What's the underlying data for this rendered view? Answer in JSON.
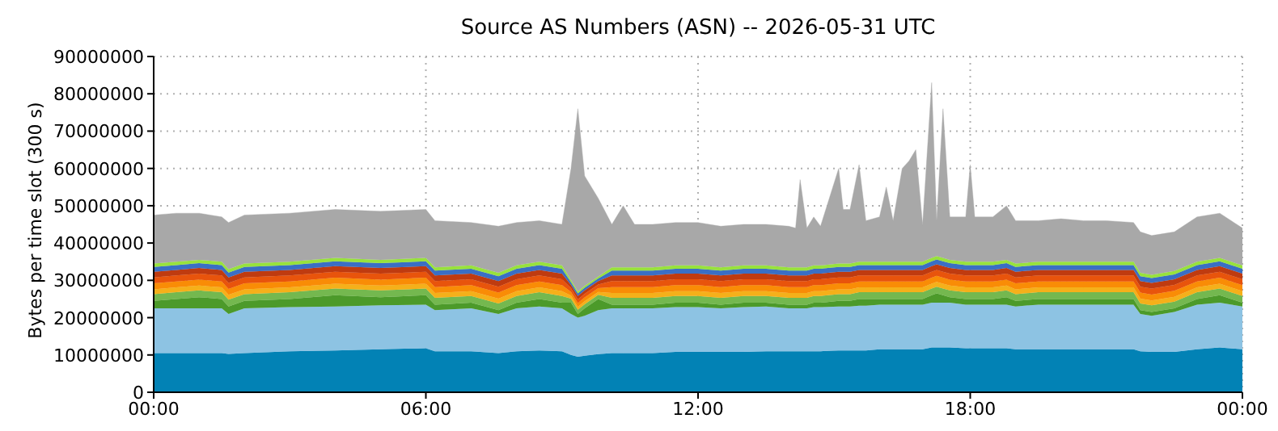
{
  "chart_data": {
    "type": "area",
    "stacked": true,
    "title": "Source AS Numbers (ASN) -- 2026-05-31 UTC",
    "ylabel": "Bytes per time slot (300 s)",
    "grid": true,
    "x": [
      0,
      0.5,
      1,
      1.5,
      1.65,
      2,
      3,
      4,
      5,
      6,
      6.2,
      7,
      7.6,
      8,
      8.5,
      9,
      9.2,
      9.35,
      9.5,
      9.8,
      10.1,
      10.35,
      10.6,
      11,
      11.5,
      12,
      12.5,
      13,
      13.5,
      14,
      14.15,
      14.25,
      14.4,
      14.55,
      14.7,
      15.1,
      15.2,
      15.35,
      15.55,
      15.7,
      16,
      16.15,
      16.3,
      16.5,
      16.65,
      16.8,
      16.95,
      17.15,
      17.26,
      17.4,
      17.55,
      17.9,
      18,
      18.1,
      18.5,
      18.8,
      19,
      19.5,
      20,
      20.5,
      21,
      21.6,
      21.75,
      22,
      22.5,
      23,
      23.5,
      24
    ],
    "xlim": [
      0,
      24
    ],
    "xticks": [
      {
        "value": 0,
        "label": "00:00"
      },
      {
        "value": 6,
        "label": "06:00"
      },
      {
        "value": 12,
        "label": "12:00"
      },
      {
        "value": 18,
        "label": "18:00"
      },
      {
        "value": 24,
        "label": "00:00"
      }
    ],
    "ylim": [
      0,
      90000000
    ],
    "yticks": [
      0,
      10000000,
      20000000,
      30000000,
      40000000,
      50000000,
      60000000,
      70000000,
      80000000,
      90000000
    ],
    "series": [
      {
        "color": "#0282b5",
        "values": [
          10500000,
          10500000,
          10500000,
          10500000,
          10300000,
          10500000,
          11000000,
          11200000,
          11500000,
          11800000,
          11000000,
          11000000,
          10500000,
          11000000,
          11200000,
          11000000,
          10000000,
          9500000,
          9800000,
          10200000,
          10500000,
          10500000,
          10500000,
          10500000,
          10800000,
          10800000,
          10800000,
          10800000,
          11000000,
          11000000,
          11000000,
          11000000,
          11000000,
          11000000,
          11000000,
          11200000,
          11200000,
          11200000,
          11200000,
          11200000,
          11500000,
          11500000,
          11500000,
          11500000,
          11500000,
          11500000,
          11500000,
          12000000,
          12000000,
          12000000,
          12000000,
          11800000,
          11800000,
          11800000,
          11800000,
          11800000,
          11500000,
          11500000,
          11500000,
          11500000,
          11500000,
          11500000,
          11000000,
          10800000,
          10800000,
          11500000,
          12000000,
          11500000
        ]
      },
      {
        "color": "#8dc3e3",
        "values": [
          12000000,
          12000000,
          12000000,
          12000000,
          10700000,
          12000000,
          11800000,
          11800000,
          11800000,
          11700000,
          11000000,
          11500000,
          10500000,
          11500000,
          11800000,
          11500000,
          11000000,
          10500000,
          10700000,
          11800000,
          12000000,
          12000000,
          12000000,
          12000000,
          12000000,
          12000000,
          11700000,
          12000000,
          12000000,
          11500000,
          11500000,
          11500000,
          11500000,
          11800000,
          11800000,
          11800000,
          11800000,
          11800000,
          12000000,
          12000000,
          12000000,
          12000000,
          12000000,
          12000000,
          12000000,
          12000000,
          12000000,
          12000000,
          12000000,
          12000000,
          12000000,
          11700000,
          11700000,
          11700000,
          11700000,
          11700000,
          11500000,
          12000000,
          12000000,
          12000000,
          12000000,
          12000000,
          10000000,
          9700000,
          10700000,
          12000000,
          12000000,
          11500000
        ]
      },
      {
        "color": "#4c9a2a",
        "values": [
          2000000,
          2500000,
          3000000,
          2500000,
          2000000,
          2000000,
          2200000,
          3000000,
          2200000,
          2500000,
          1500000,
          1500000,
          1000000,
          1500000,
          2000000,
          1500000,
          3000000,
          1000000,
          2000000,
          3000000,
          1000000,
          1000000,
          1000000,
          1000000,
          1200000,
          1200000,
          1000000,
          1200000,
          1000000,
          1000000,
          1000000,
          1000000,
          1000000,
          1200000,
          1200000,
          1500000,
          1500000,
          1500000,
          1800000,
          1800000,
          1500000,
          1500000,
          1500000,
          1500000,
          1500000,
          1500000,
          1500000,
          2000000,
          2500000,
          2000000,
          1500000,
          1500000,
          1500000,
          1500000,
          1500000,
          2000000,
          1500000,
          1500000,
          1500000,
          1500000,
          1500000,
          1500000,
          1000000,
          1000000,
          1000000,
          1500000,
          2000000,
          1000000
        ]
      },
      {
        "color": "#74b84f",
        "values": [
          1800000,
          1800000,
          1800000,
          1800000,
          1800000,
          1800000,
          1800000,
          1800000,
          1800000,
          1800000,
          1800000,
          1800000,
          1800000,
          1800000,
          1800000,
          1800000,
          1100000,
          1100000,
          1100000,
          1100000,
          1800000,
          1800000,
          1800000,
          1800000,
          1800000,
          1800000,
          1800000,
          1800000,
          1800000,
          1800000,
          1800000,
          1800000,
          1800000,
          1800000,
          1800000,
          1800000,
          1800000,
          1800000,
          1800000,
          1800000,
          1800000,
          1800000,
          1800000,
          1800000,
          1800000,
          1800000,
          1800000,
          1800000,
          1800000,
          1800000,
          1800000,
          1800000,
          1800000,
          1800000,
          1800000,
          1800000,
          1800000,
          1800000,
          1800000,
          1800000,
          1800000,
          1800000,
          1800000,
          1800000,
          1800000,
          1800000,
          1800000,
          1800000
        ]
      },
      {
        "color": "#f5b01a",
        "values": [
          1300000,
          1300000,
          1300000,
          1300000,
          1300000,
          1300000,
          1300000,
          1300000,
          1300000,
          1300000,
          1300000,
          1300000,
          1300000,
          1300000,
          1300000,
          1300000,
          800000,
          800000,
          800000,
          800000,
          1300000,
          1300000,
          1300000,
          1300000,
          1300000,
          1300000,
          1300000,
          1300000,
          1300000,
          1300000,
          1300000,
          1300000,
          1300000,
          1300000,
          1300000,
          1300000,
          1300000,
          1300000,
          1300000,
          1300000,
          1300000,
          1300000,
          1300000,
          1300000,
          1300000,
          1300000,
          1300000,
          1300000,
          1300000,
          1300000,
          1300000,
          1300000,
          1300000,
          1300000,
          1300000,
          1300000,
          1300000,
          1300000,
          1300000,
          1300000,
          1300000,
          1300000,
          1300000,
          1300000,
          1300000,
          1300000,
          1300000,
          1300000
        ]
      },
      {
        "color": "#f98c06",
        "values": [
          1600000,
          1600000,
          1600000,
          1600000,
          1600000,
          1600000,
          1600000,
          1600000,
          1600000,
          1600000,
          1600000,
          1600000,
          1600000,
          1600000,
          1600000,
          1600000,
          1000000,
          1000000,
          1000000,
          1000000,
          1600000,
          1600000,
          1600000,
          1600000,
          1600000,
          1600000,
          1600000,
          1600000,
          1600000,
          1600000,
          1600000,
          1600000,
          1600000,
          1600000,
          1600000,
          1600000,
          1600000,
          1600000,
          1600000,
          1600000,
          1600000,
          1600000,
          1600000,
          1600000,
          1600000,
          1600000,
          1600000,
          1600000,
          1600000,
          1600000,
          1600000,
          1600000,
          1600000,
          1600000,
          1600000,
          1600000,
          1600000,
          1600000,
          1600000,
          1600000,
          1600000,
          1600000,
          1600000,
          1600000,
          1600000,
          1600000,
          1600000,
          1600000
        ]
      },
      {
        "color": "#e8540c",
        "values": [
          1600000,
          1600000,
          1600000,
          1600000,
          1600000,
          1600000,
          1600000,
          1600000,
          1600000,
          1600000,
          1600000,
          1600000,
          1600000,
          1600000,
          1600000,
          1600000,
          1000000,
          1000000,
          1000000,
          1000000,
          1600000,
          1600000,
          1600000,
          1600000,
          1600000,
          1600000,
          1600000,
          1600000,
          1600000,
          1600000,
          1600000,
          1600000,
          1600000,
          1600000,
          1600000,
          1600000,
          1600000,
          1600000,
          1600000,
          1600000,
          1600000,
          1600000,
          1600000,
          1600000,
          1600000,
          1600000,
          1600000,
          1600000,
          1600000,
          1600000,
          1600000,
          1600000,
          1600000,
          1600000,
          1600000,
          1600000,
          1600000,
          1600000,
          1600000,
          1600000,
          1600000,
          1600000,
          1600000,
          1600000,
          1600000,
          1600000,
          1600000,
          1600000
        ]
      },
      {
        "color": "#bf3b10",
        "values": [
          1500000,
          1500000,
          1500000,
          1500000,
          1500000,
          1500000,
          1500000,
          1500000,
          1500000,
          1500000,
          1500000,
          1500000,
          1500000,
          1500000,
          1500000,
          1500000,
          900000,
          900000,
          900000,
          900000,
          1500000,
          1500000,
          1500000,
          1500000,
          1500000,
          1500000,
          1500000,
          1500000,
          1500000,
          1500000,
          1500000,
          1500000,
          1500000,
          1500000,
          1500000,
          1500000,
          1500000,
          1500000,
          1500000,
          1500000,
          1500000,
          1500000,
          1500000,
          1500000,
          1500000,
          1500000,
          1500000,
          1500000,
          1500000,
          1500000,
          1500000,
          1500000,
          1500000,
          1500000,
          1500000,
          1500000,
          1500000,
          1500000,
          1500000,
          1500000,
          1500000,
          1500000,
          1500000,
          1500000,
          1500000,
          1500000,
          1500000,
          1500000
        ]
      },
      {
        "color": "#3a6fc4",
        "values": [
          1300000,
          1300000,
          1300000,
          1300000,
          1300000,
          1300000,
          1300000,
          1300000,
          1300000,
          1300000,
          1300000,
          1300000,
          1300000,
          1300000,
          1300000,
          1300000,
          700000,
          700000,
          700000,
          700000,
          1300000,
          1300000,
          1300000,
          1300000,
          1300000,
          1300000,
          1300000,
          1300000,
          1300000,
          1300000,
          1300000,
          1300000,
          1300000,
          1300000,
          1300000,
          1300000,
          1300000,
          1300000,
          1300000,
          1300000,
          1300000,
          1300000,
          1300000,
          1300000,
          1300000,
          1300000,
          1300000,
          1300000,
          1300000,
          1300000,
          1300000,
          1300000,
          1300000,
          1300000,
          1300000,
          1300000,
          1300000,
          1300000,
          1300000,
          1300000,
          1300000,
          1300000,
          1300000,
          1300000,
          1300000,
          1300000,
          1300000,
          1300000
        ]
      },
      {
        "color": "#98e23c",
        "values": [
          900000,
          900000,
          900000,
          900000,
          900000,
          900000,
          900000,
          900000,
          900000,
          900000,
          900000,
          900000,
          900000,
          900000,
          900000,
          900000,
          500000,
          500000,
          500000,
          500000,
          900000,
          900000,
          900000,
          900000,
          900000,
          900000,
          900000,
          900000,
          900000,
          900000,
          900000,
          900000,
          900000,
          900000,
          900000,
          900000,
          900000,
          900000,
          900000,
          900000,
          900000,
          900000,
          900000,
          900000,
          900000,
          900000,
          900000,
          900000,
          900000,
          900000,
          900000,
          900000,
          900000,
          900000,
          900000,
          900000,
          900000,
          900000,
          900000,
          900000,
          900000,
          900000,
          900000,
          900000,
          900000,
          900000,
          900000,
          900000
        ]
      },
      {
        "color": "#a8a8a8",
        "values": [
          13000000,
          13000000,
          12500000,
          12000000,
          12500000,
          13000000,
          13000000,
          13000000,
          13000000,
          13000000,
          12500000,
          11500000,
          12500000,
          11500000,
          11000000,
          11000000,
          30000000,
          49000000,
          29500000,
          21000000,
          11500000,
          16500000,
          11500000,
          11500000,
          11500000,
          11500000,
          11000000,
          11000000,
          11000000,
          11000000,
          10500000,
          23500000,
          10500000,
          13000000,
          10500000,
          25500000,
          14500000,
          14500000,
          26000000,
          11000000,
          12000000,
          20000000,
          11000000,
          25000000,
          27000000,
          30000000,
          10000000,
          47000000,
          9500000,
          40000000,
          11500000,
          12000000,
          26000000,
          12000000,
          12000000,
          14500000,
          11500000,
          11000000,
          11500000,
          11000000,
          11000000,
          10500000,
          11000000,
          10500000,
          10500000,
          12000000,
          12000000,
          10000000
        ]
      }
    ]
  }
}
